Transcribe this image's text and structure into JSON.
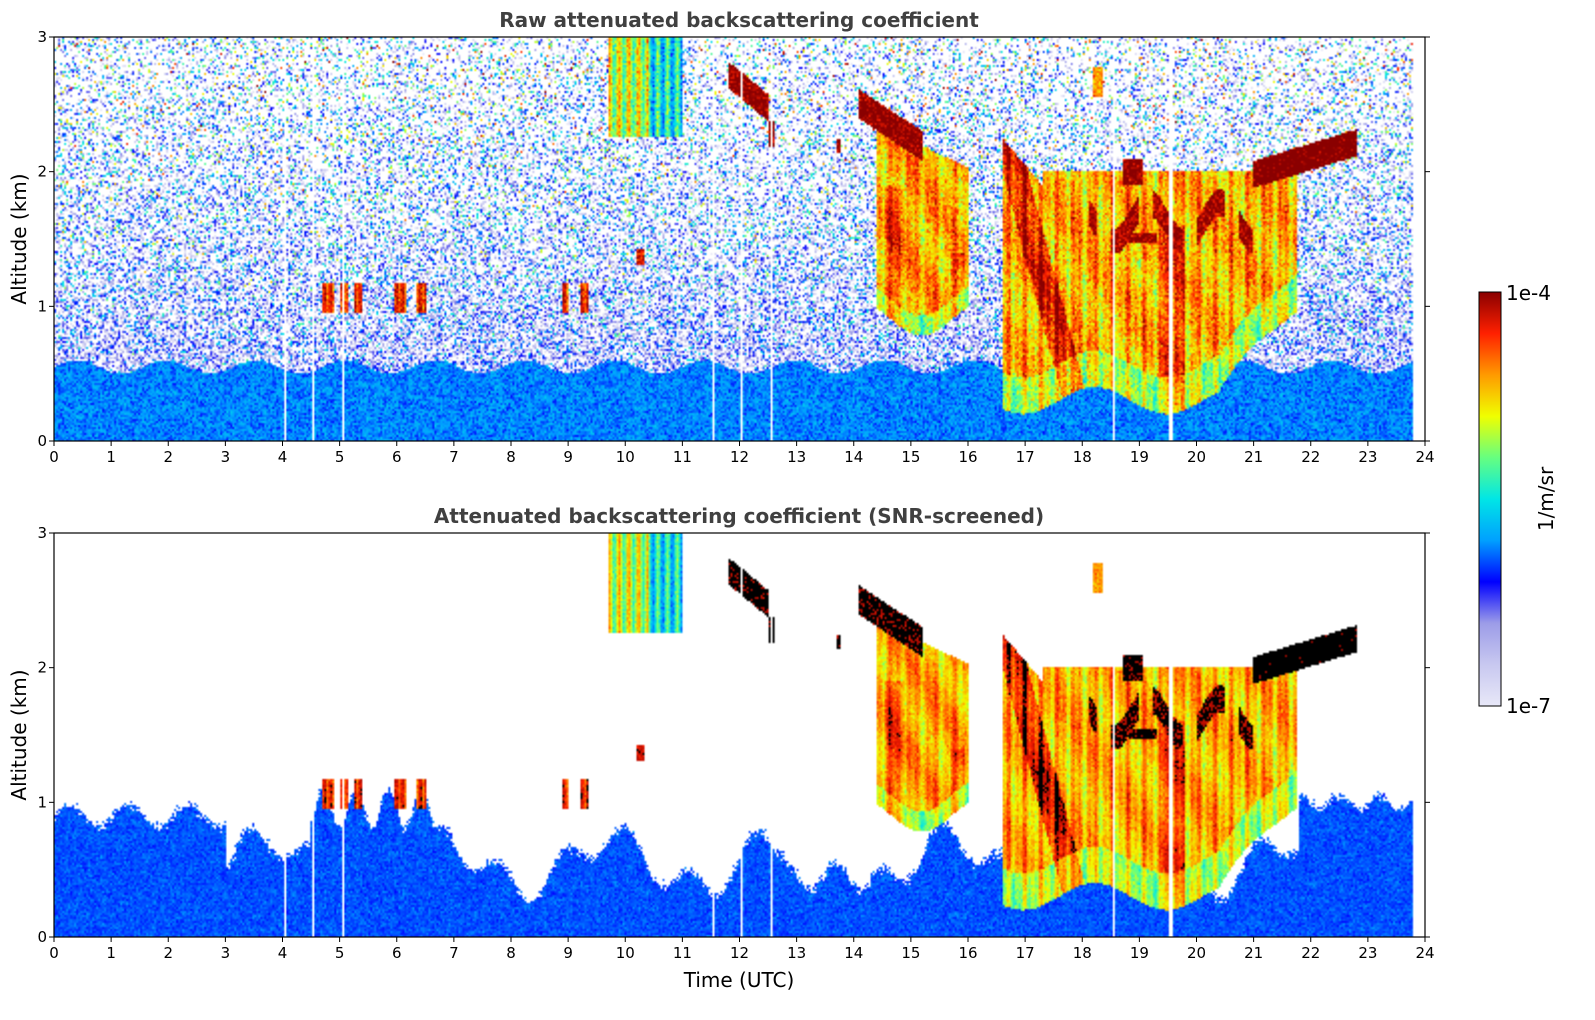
{
  "chart_data": [
    {
      "type": "heatmap",
      "title": "Raw attenuated backscattering coefficient",
      "xlabel": "",
      "ylabel": "Altitude (km)",
      "xlim": [
        0,
        24
      ],
      "ylim": [
        0,
        3
      ],
      "x_ticks": [
        "0",
        "1",
        "2",
        "3",
        "4",
        "5",
        "6",
        "7",
        "8",
        "9",
        "10",
        "11",
        "12",
        "13",
        "14",
        "15",
        "16",
        "17",
        "18",
        "19",
        "20",
        "21",
        "22",
        "23",
        "24"
      ],
      "y_ticks": [
        "0",
        "1",
        "2",
        "3"
      ],
      "screened": false,
      "data_end_hour": 23.8,
      "gaps_hours": [
        4.05,
        4.55,
        5.05,
        11.55,
        12.05,
        12.55,
        18.55,
        19.55
      ],
      "features": [
        {
          "name": "boundary layer aerosol",
          "x": [
            0,
            23.8
          ],
          "y": [
            0,
            0.6
          ],
          "log10_value": -5.9
        },
        {
          "name": "ice cloud fall streaks",
          "x": [
            14.4,
            16.0
          ],
          "y": [
            0.9,
            2.5
          ],
          "log10_value": -4.6
        },
        {
          "name": "ice cloud fall streaks",
          "x": [
            16.6,
            21.7
          ],
          "y": [
            0.3,
            2.2
          ],
          "log10_value": -4.8
        },
        {
          "name": "cloud base layer",
          "x": [
            21.0,
            22.8
          ],
          "y": [
            1.85,
            2.2
          ],
          "log10_value": -4.0
        },
        {
          "name": "cloud patches",
          "x": [
            18.1,
            21.0
          ],
          "y": [
            1.35,
            1.95
          ],
          "log10_value": -4.1
        },
        {
          "name": "cirrus",
          "x": [
            9.7,
            11.0
          ],
          "y": [
            2.2,
            3.0
          ],
          "log10_value": -5.0
        },
        {
          "name": "cloud patch",
          "x": [
            11.8,
            12.5
          ],
          "y": [
            2.45,
            2.7
          ],
          "log10_value": -4.0
        },
        {
          "name": "cloud patch",
          "x": [
            14.1,
            15.2
          ],
          "y": [
            2.1,
            2.55
          ],
          "log10_value": -4.0
        },
        {
          "name": "low cloud fragments",
          "x": [
            4.7,
            6.6
          ],
          "y": [
            0.95,
            1.15
          ],
          "log10_value": -4.3
        },
        {
          "name": "low cloud fragments",
          "x": [
            8.9,
            9.5
          ],
          "y": [
            1.05,
            1.15
          ],
          "log10_value": -4.4
        }
      ]
    },
    {
      "type": "heatmap",
      "title": "Attenuated backscattering coefficient (SNR-screened)",
      "xlabel": "Time (UTC)",
      "ylabel": "Altitude (km)",
      "xlim": [
        0,
        24
      ],
      "ylim": [
        0,
        3
      ],
      "x_ticks": [
        "0",
        "1",
        "2",
        "3",
        "4",
        "5",
        "6",
        "7",
        "8",
        "9",
        "10",
        "11",
        "12",
        "13",
        "14",
        "15",
        "16",
        "17",
        "18",
        "19",
        "20",
        "21",
        "22",
        "23",
        "24"
      ],
      "y_ticks": [
        "0",
        "1",
        "2",
        "3"
      ],
      "screened": true,
      "data_end_hour": 23.8,
      "gaps_hours": [
        4.05,
        4.55,
        5.05,
        11.55,
        12.05,
        12.55,
        18.55,
        19.55
      ],
      "above_scale_color": "#000000"
    }
  ],
  "colorbar": {
    "label": "1/m/sr",
    "max_label": "1e-4",
    "min_label": "1e-7",
    "scale": "log",
    "range": [
      1e-07,
      0.0001
    ],
    "colormap": "jet",
    "colors": [
      "#e8e8f8",
      "#c8c8f0",
      "#9c9ce8",
      "#0000ff",
      "#00a0ff",
      "#00e6e6",
      "#66ff80",
      "#f0ff00",
      "#ff9a00",
      "#ff2000",
      "#8a0000"
    ]
  }
}
